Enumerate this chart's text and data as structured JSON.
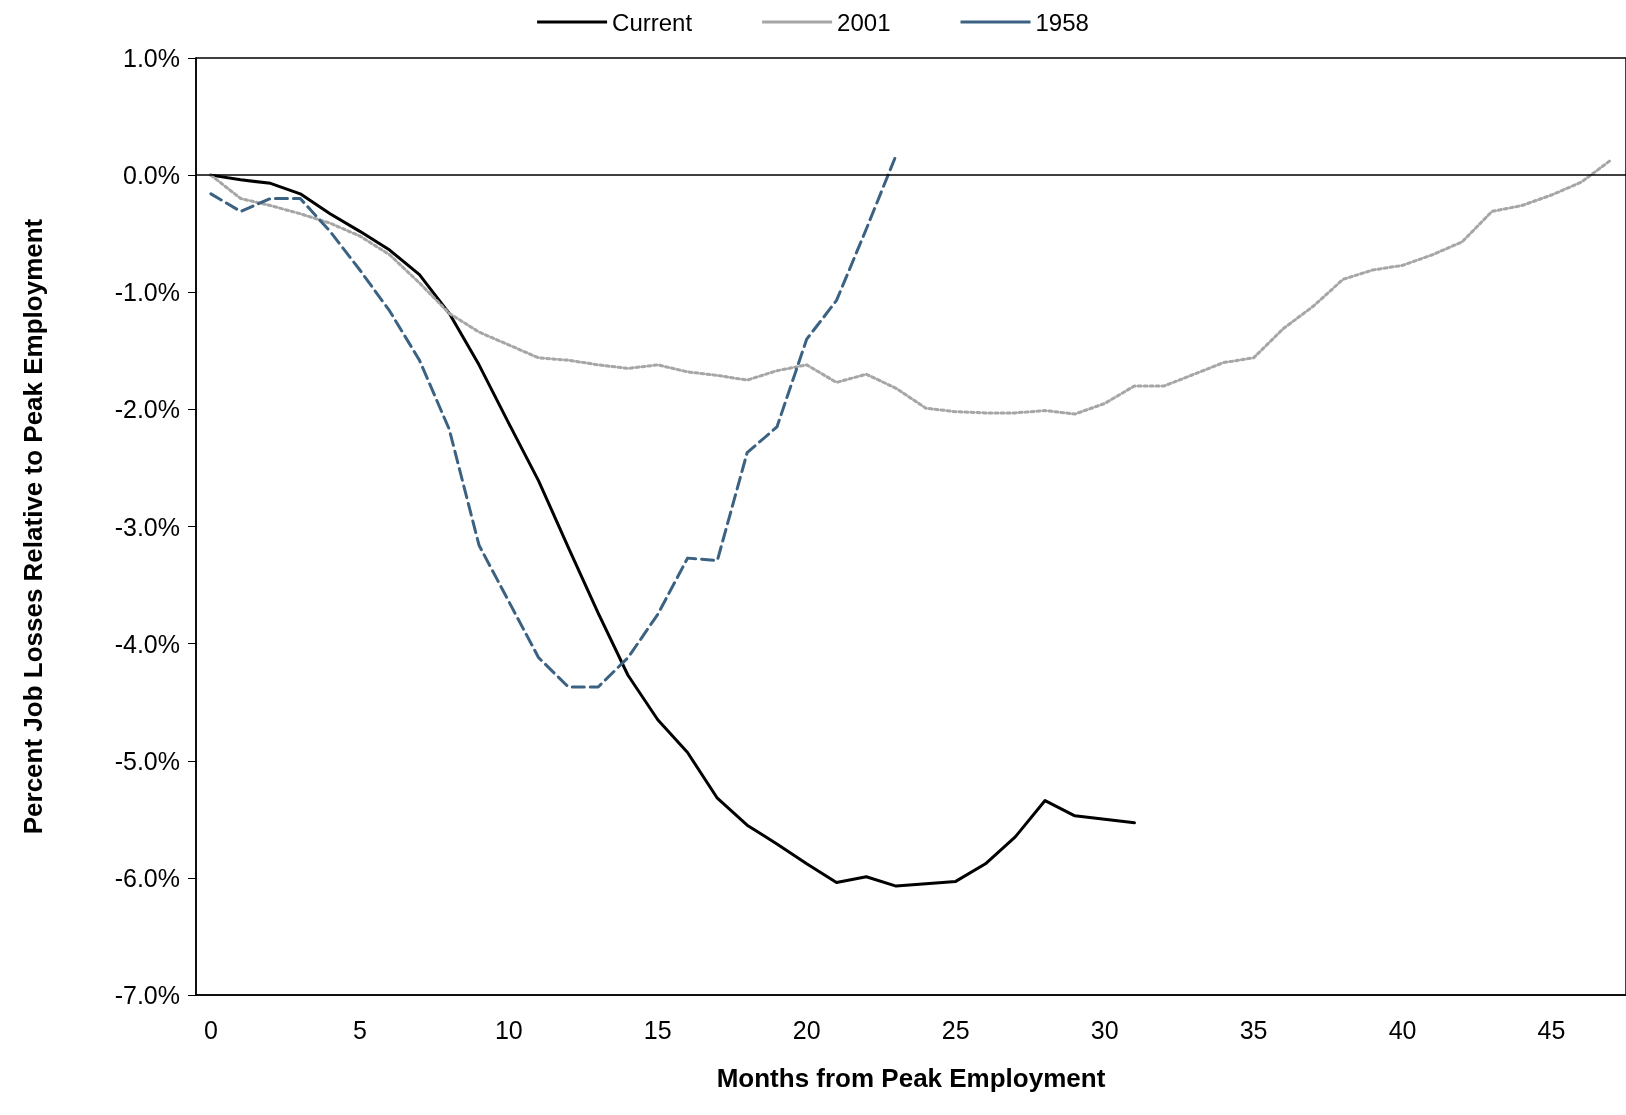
{
  "chart_data": {
    "type": "line",
    "xlabel": "Months from Peak Employment",
    "ylabel": "Percent Job Losses Relative to Peak Employment",
    "xlim": [
      -0.5,
      47.5
    ],
    "xticks": [
      0,
      5,
      10,
      15,
      20,
      25,
      30,
      35,
      40,
      45
    ],
    "ylim": [
      -7,
      1
    ],
    "yticks": [
      {
        "value": -7,
        "label": "-7.0%"
      },
      {
        "value": -6,
        "label": "-6.0%"
      },
      {
        "value": -5,
        "label": "-5.0%"
      },
      {
        "value": -4,
        "label": "-4.0%"
      },
      {
        "value": -3,
        "label": "-3.0%"
      },
      {
        "value": -2,
        "label": "-2.0%"
      },
      {
        "value": -1,
        "label": "-1.0%"
      },
      {
        "value": 0,
        "label": "0.0%"
      },
      {
        "value": 1,
        "label": "1.0%"
      }
    ],
    "grid": false,
    "legend": "top",
    "marker": "none",
    "ref_lines": [
      {
        "axis": "y",
        "value": 0,
        "color": "#000000"
      }
    ],
    "series": [
      {
        "name": "Current",
        "color": "#000000",
        "line_style": "solid",
        "x": [
          0,
          1,
          2,
          3,
          4,
          5,
          6,
          7,
          8,
          9,
          10,
          11,
          12,
          13,
          14,
          15,
          16,
          17,
          18,
          19,
          20,
          21,
          22,
          23,
          24,
          25,
          26,
          27,
          28,
          29,
          30,
          31
        ],
        "values": [
          0,
          -0.04,
          -0.07,
          -0.16,
          -0.33,
          -0.48,
          -0.64,
          -0.85,
          -1.18,
          -1.62,
          -2.12,
          -2.61,
          -3.18,
          -3.74,
          -4.27,
          -4.65,
          -4.93,
          -5.32,
          -5.55,
          -5.71,
          -5.88,
          -6.04,
          -5.99,
          -6.07,
          -6.05,
          -6.03,
          -5.88,
          -5.65,
          -5.34,
          -5.47,
          -5.5,
          -5.53
        ]
      },
      {
        "name": "2001",
        "color": "#a6a6a6",
        "line_style": "dotted",
        "x": [
          0,
          1,
          2,
          3,
          4,
          5,
          6,
          7,
          8,
          9,
          10,
          11,
          12,
          13,
          14,
          15,
          16,
          17,
          18,
          19,
          20,
          21,
          22,
          23,
          24,
          25,
          26,
          27,
          28,
          29,
          30,
          31,
          32,
          33,
          34,
          35,
          36,
          37,
          38,
          39,
          40,
          41,
          42,
          43,
          44,
          45,
          46,
          47
        ],
        "values": [
          0,
          -0.2,
          -0.26,
          -0.33,
          -0.41,
          -0.52,
          -0.68,
          -0.92,
          -1.18,
          -1.34,
          -1.45,
          -1.56,
          -1.58,
          -1.62,
          -1.65,
          -1.62,
          -1.68,
          -1.71,
          -1.75,
          -1.67,
          -1.62,
          -1.77,
          -1.7,
          -1.82,
          -1.99,
          -2.02,
          -2.03,
          -2.03,
          -2.01,
          -2.04,
          -1.95,
          -1.8,
          -1.8,
          -1.7,
          -1.6,
          -1.56,
          -1.31,
          -1.12,
          -0.89,
          -0.81,
          -0.77,
          -0.68,
          -0.57,
          -0.31,
          -0.26,
          -0.17,
          -0.06,
          0.13
        ]
      },
      {
        "name": "1958",
        "color": "#3b6282",
        "line_style": "dashed",
        "x": [
          0,
          1,
          2,
          3,
          4,
          5,
          6,
          7,
          8,
          9,
          10,
          11,
          12,
          13,
          14,
          15,
          16,
          17,
          18,
          19,
          20,
          21,
          22,
          23
        ],
        "values": [
          -0.16,
          -0.31,
          -0.2,
          -0.2,
          -0.48,
          -0.81,
          -1.16,
          -1.58,
          -2.17,
          -3.16,
          -3.64,
          -4.12,
          -4.37,
          -4.37,
          -4.12,
          -3.75,
          -3.27,
          -3.29,
          -2.37,
          -2.15,
          -1.4,
          -1.07,
          -0.46,
          0.17
        ]
      }
    ]
  }
}
